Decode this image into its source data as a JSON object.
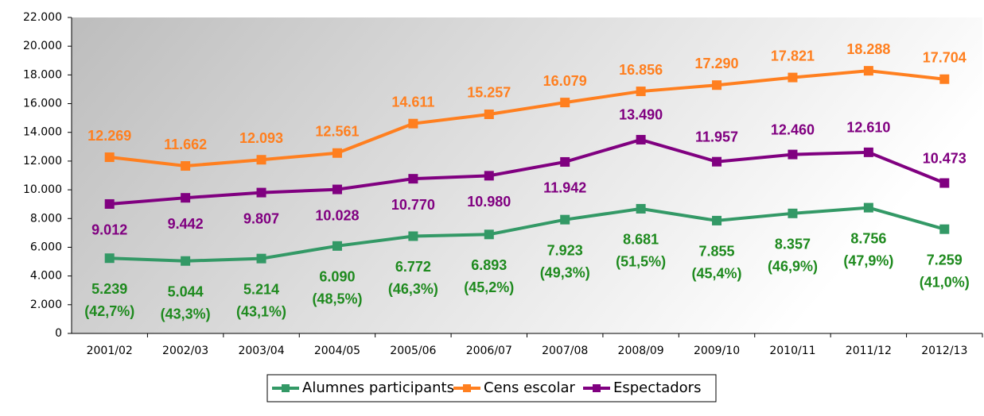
{
  "chart_data": {
    "type": "line",
    "categories": [
      "2001/02",
      "2002/03",
      "2003/04",
      "2004/05",
      "2005/06",
      "2006/07",
      "2007/08",
      "2008/09",
      "2009/10",
      "2010/11",
      "2011/12",
      "2012/13"
    ],
    "series": [
      {
        "name": "Alumnes participants",
        "color": "#339966",
        "label_color": "#1e8a1e",
        "values": [
          5239,
          5044,
          5214,
          6090,
          6772,
          6893,
          7923,
          8681,
          7855,
          8357,
          8756,
          7259
        ],
        "value_labels": [
          "5.239",
          "5.044",
          "5.214",
          "6.090",
          "6.772",
          "6.893",
          "7.923",
          "8.681",
          "7.855",
          "8.357",
          "8.756",
          "7.259"
        ],
        "percent_labels": [
          "(42,7%)",
          "(43,3%)",
          "(43,1%)",
          "(48,5%)",
          "(46,3%)",
          "(45,2%)",
          "(49,3%)",
          "(51,5%)",
          "(45,4%)",
          "(46,9%)",
          "(47,9%)",
          "(41,0%)"
        ]
      },
      {
        "name": "Cens escolar",
        "color": "#ff7f1f",
        "label_color": "#ff7f1f",
        "values": [
          12269,
          11662,
          12093,
          12561,
          14611,
          15257,
          16079,
          16856,
          17290,
          17821,
          18288,
          17704
        ],
        "value_labels": [
          "12.269",
          "11.662",
          "12.093",
          "12.561",
          "14.611",
          "15.257",
          "16.079",
          "16.856",
          "17.290",
          "17.821",
          "18.288",
          "17.704"
        ]
      },
      {
        "name": "Espectadors",
        "color": "#800080",
        "label_color": "#800080",
        "values": [
          9012,
          9442,
          9807,
          10028,
          10770,
          10980,
          11942,
          13490,
          11957,
          12460,
          12610,
          10473
        ],
        "value_labels": [
          "9.012",
          "9.442",
          "9.807",
          "10.028",
          "10.770",
          "10.980",
          "11.942",
          "13.490",
          "11.957",
          "12.460",
          "12.610",
          "10.473"
        ]
      }
    ],
    "ylim": [
      0,
      22000
    ],
    "yticks": [
      0,
      {
        "value": 2000,
        "label": "2.000"
      },
      {
        "value": 4000,
        "label": "4.000"
      },
      {
        "value": 6000,
        "label": "6.000"
      },
      {
        "value": 8000,
        "label": "8.000"
      },
      {
        "value": 10000,
        "label": "10.000"
      },
      {
        "value": 12000,
        "label": "12.000"
      },
      {
        "value": 14000,
        "label": "14.000"
      },
      {
        "value": 16000,
        "label": "16.000"
      },
      {
        "value": 18000,
        "label": "18.000"
      },
      {
        "value": 20000,
        "label": "20.000"
      },
      {
        "value": 22000,
        "label": "22.000"
      }
    ],
    "legend": "bottom"
  }
}
